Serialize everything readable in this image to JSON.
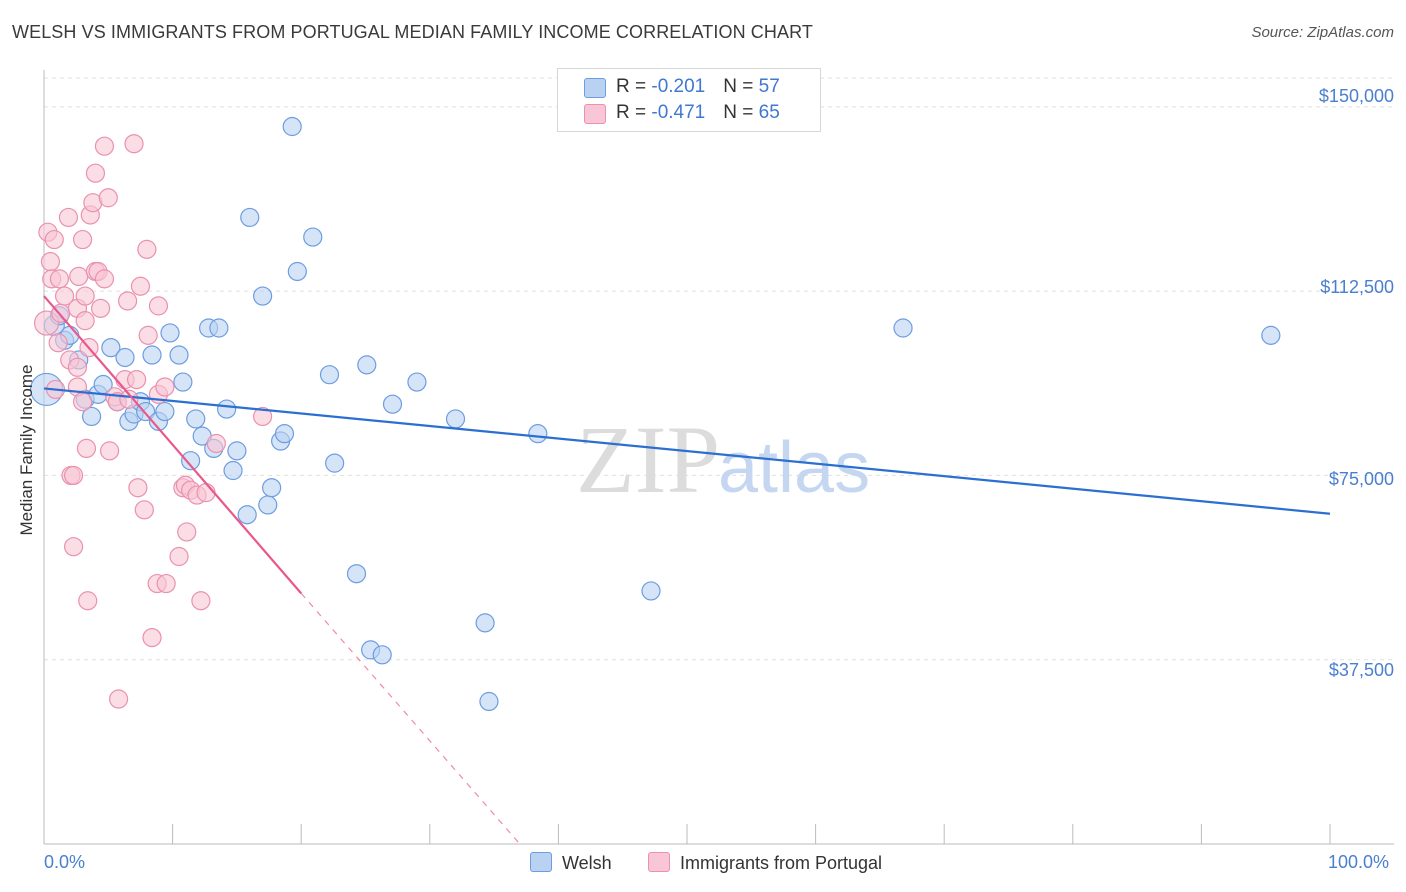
{
  "title": "WELSH VS IMMIGRANTS FROM PORTUGAL MEDIAN FAMILY INCOME CORRELATION CHART",
  "source": "Source: ZipAtlas.com",
  "watermark": {
    "zip": "ZIP",
    "atlas": "atlas"
  },
  "legend_top": {
    "rows": [
      {
        "r_label": "R = ",
        "r_value": "-0.201",
        "n_label": "N = ",
        "n_value": "57"
      },
      {
        "r_label": "R = ",
        "r_value": "-0.471",
        "n_label": "N = ",
        "n_value": "65"
      }
    ]
  },
  "colors": {
    "welsh_fill": "#b9d2f2",
    "welsh_stroke": "#6d9de0",
    "welsh_line": "#2b6fd0",
    "portugal_fill": "#f8c6d6",
    "portugal_stroke": "#ea91b0",
    "portugal_line": "#e8588a",
    "grid": "#e0e0e0",
    "tick_text": "#4a7fcf"
  },
  "chart_data": {
    "type": "scatter",
    "title": "WELSH VS IMMIGRANTS FROM PORTUGAL MEDIAN FAMILY INCOME CORRELATION CHART",
    "xlabel": "",
    "ylabel": "Median Family Income",
    "xlim": [
      0,
      100
    ],
    "ylim": [
      0,
      157500
    ],
    "x_tick_labels": [
      "0.0%",
      "100.0%"
    ],
    "y_ticks": [
      37500,
      75000,
      112500,
      150000
    ],
    "y_tick_labels": [
      "$37,500",
      "$75,000",
      "$112,500",
      "$150,000"
    ],
    "grid": true,
    "legend_position": "bottom-center",
    "series": [
      {
        "name": "Welsh",
        "R": -0.201,
        "N": 57,
        "trend": {
          "x": [
            0,
            100
          ],
          "y": [
            92700,
            67200
          ]
        },
        "points": [
          [
            0.2,
            92500,
            16
          ],
          [
            0.8,
            105500,
            10
          ],
          [
            1.2,
            107500,
            9
          ],
          [
            1.6,
            102500,
            9
          ],
          [
            2.0,
            103500,
            9
          ],
          [
            2.7,
            98500,
            9
          ],
          [
            3.2,
            90500,
            9
          ],
          [
            3.7,
            87000,
            9
          ],
          [
            4.2,
            91500,
            9
          ],
          [
            4.6,
            93500,
            9
          ],
          [
            5.2,
            101000,
            9
          ],
          [
            5.7,
            90000,
            9
          ],
          [
            6.3,
            99000,
            9
          ],
          [
            6.6,
            86000,
            9
          ],
          [
            7.0,
            87500,
            9
          ],
          [
            7.5,
            90000,
            9
          ],
          [
            7.9,
            88000,
            9
          ],
          [
            8.4,
            99500,
            9
          ],
          [
            8.9,
            86000,
            9
          ],
          [
            9.4,
            88000,
            9
          ],
          [
            9.8,
            104000,
            9
          ],
          [
            10.5,
            99500,
            9
          ],
          [
            10.8,
            94000,
            9
          ],
          [
            11.4,
            78000,
            9
          ],
          [
            11.8,
            86500,
            9
          ],
          [
            12.3,
            83000,
            9
          ],
          [
            12.8,
            105000,
            9
          ],
          [
            13.2,
            80500,
            9
          ],
          [
            13.6,
            105000,
            9
          ],
          [
            14.2,
            88500,
            9
          ],
          [
            14.7,
            76000,
            9
          ],
          [
            15.0,
            80000,
            9
          ],
          [
            15.8,
            67000,
            9
          ],
          [
            16.0,
            127500,
            9
          ],
          [
            17.0,
            111500,
            9
          ],
          [
            17.4,
            69000,
            9
          ],
          [
            17.7,
            72500,
            9
          ],
          [
            18.4,
            82000,
            9
          ],
          [
            18.7,
            83500,
            9
          ],
          [
            19.3,
            146000,
            9
          ],
          [
            19.7,
            116500,
            9
          ],
          [
            20.9,
            123500,
            9
          ],
          [
            22.2,
            95500,
            9
          ],
          [
            22.6,
            77500,
            9
          ],
          [
            24.3,
            55000,
            9
          ],
          [
            25.1,
            97500,
            9
          ],
          [
            25.4,
            39500,
            9
          ],
          [
            26.3,
            38500,
            9
          ],
          [
            27.1,
            89500,
            9
          ],
          [
            29.0,
            94000,
            9
          ],
          [
            32.0,
            86500,
            9
          ],
          [
            34.3,
            45000,
            9
          ],
          [
            34.6,
            29000,
            9
          ],
          [
            38.4,
            83500,
            9
          ],
          [
            47.2,
            51500,
            9
          ],
          [
            66.8,
            105000,
            9
          ],
          [
            95.4,
            103500,
            9
          ]
        ]
      },
      {
        "name": "Immigrants from Portugal",
        "R": -0.471,
        "N": 65,
        "trend": {
          "x": [
            0,
            20
          ],
          "y": [
            111500,
            51000
          ]
        },
        "trend_dashed": {
          "x": [
            20,
            37
          ],
          "y": [
            51000,
            0
          ]
        },
        "points": [
          [
            0.2,
            106000,
            12
          ],
          [
            0.3,
            124500,
            9
          ],
          [
            0.5,
            118500,
            9
          ],
          [
            0.6,
            115000,
            9
          ],
          [
            0.8,
            123000,
            9
          ],
          [
            0.9,
            92500,
            9
          ],
          [
            1.1,
            102000,
            9
          ],
          [
            1.2,
            115000,
            9
          ],
          [
            1.3,
            108000,
            9
          ],
          [
            1.6,
            111500,
            9
          ],
          [
            1.9,
            127500,
            9
          ],
          [
            2.0,
            98500,
            9
          ],
          [
            2.1,
            75000,
            9
          ],
          [
            2.3,
            75000,
            9
          ],
          [
            2.3,
            60500,
            9
          ],
          [
            2.6,
            97000,
            9
          ],
          [
            2.6,
            109000,
            9
          ],
          [
            2.6,
            93000,
            9
          ],
          [
            2.7,
            115500,
            9
          ],
          [
            3.0,
            123000,
            9
          ],
          [
            3.0,
            90000,
            9
          ],
          [
            3.2,
            106500,
            9
          ],
          [
            3.2,
            111500,
            9
          ],
          [
            3.3,
            80500,
            9
          ],
          [
            3.4,
            49500,
            9
          ],
          [
            3.5,
            101000,
            9
          ],
          [
            3.6,
            128000,
            9
          ],
          [
            3.8,
            130500,
            9
          ],
          [
            4.0,
            116500,
            9
          ],
          [
            4.2,
            116500,
            9
          ],
          [
            4.0,
            136500,
            9
          ],
          [
            4.4,
            109000,
            9
          ],
          [
            4.7,
            115000,
            9
          ],
          [
            4.7,
            142000,
            9
          ],
          [
            5.0,
            131500,
            9
          ],
          [
            5.1,
            80000,
            9
          ],
          [
            5.5,
            91000,
            9
          ],
          [
            5.7,
            90000,
            9
          ],
          [
            5.8,
            29500,
            9
          ],
          [
            6.3,
            94500,
            9
          ],
          [
            6.5,
            110500,
            9
          ],
          [
            6.6,
            90500,
            9
          ],
          [
            7.0,
            142500,
            9
          ],
          [
            7.2,
            94500,
            9
          ],
          [
            7.3,
            72500,
            9
          ],
          [
            7.5,
            113500,
            9
          ],
          [
            7.8,
            68000,
            9
          ],
          [
            8.0,
            121000,
            9
          ],
          [
            8.1,
            103500,
            9
          ],
          [
            8.4,
            42000,
            9
          ],
          [
            8.8,
            53000,
            9
          ],
          [
            8.9,
            91500,
            9
          ],
          [
            8.9,
            109500,
            9
          ],
          [
            9.4,
            93000,
            9
          ],
          [
            9.5,
            53000,
            9
          ],
          [
            10.5,
            58500,
            9
          ],
          [
            10.8,
            72500,
            9
          ],
          [
            11.0,
            73000,
            9
          ],
          [
            11.4,
            72000,
            9
          ],
          [
            11.1,
            63500,
            9
          ],
          [
            11.9,
            71000,
            9
          ],
          [
            12.2,
            49500,
            9
          ],
          [
            12.6,
            71500,
            9
          ],
          [
            13.4,
            81500,
            9
          ],
          [
            17.0,
            87000,
            9
          ]
        ]
      }
    ]
  },
  "bottom_legend": {
    "welsh": "Welsh",
    "portugal": "Immigrants from Portugal"
  }
}
